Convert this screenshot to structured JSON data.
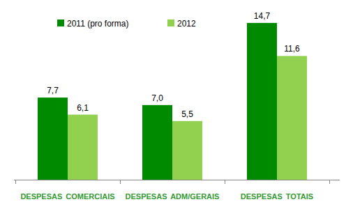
{
  "chart_data": {
    "type": "bar",
    "categories": [
      "DESPESAS COMERCIAIS",
      "DESPESAS ADM/GERAIS",
      "DESPESAS TOTAIS"
    ],
    "series": [
      {
        "name": "2011 (pro forma)",
        "color": "#008a00",
        "values": [
          7.7,
          7.0,
          14.7
        ],
        "value_labels": [
          "7,7",
          "7,0",
          "14,7"
        ]
      },
      {
        "name": "2012",
        "color": "#92d050",
        "values": [
          6.1,
          5.5,
          11.6
        ],
        "value_labels": [
          "6,1",
          "5,5",
          "11,6"
        ]
      }
    ],
    "ylim": [
      0,
      16
    ],
    "data_labels": true,
    "legend": "top",
    "tick_labels": "x"
  }
}
